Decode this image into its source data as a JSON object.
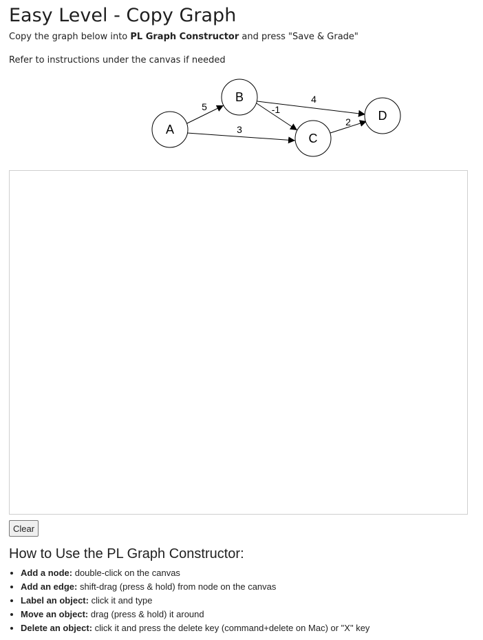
{
  "title": "Easy Level - Copy Graph",
  "intro": {
    "prefix": "Copy the graph below into ",
    "tool_name": "PL Graph Constructor",
    "suffix": " and press \"Save & Grade\""
  },
  "refer_text": "Refer to instructions under the canvas if needed",
  "graph": {
    "nodes": [
      "A",
      "B",
      "C",
      "D"
    ],
    "edges": [
      {
        "from": "A",
        "to": "B",
        "weight": "5"
      },
      {
        "from": "A",
        "to": "C",
        "weight": "3"
      },
      {
        "from": "B",
        "to": "C",
        "weight": "-1"
      },
      {
        "from": "B",
        "to": "D",
        "weight": "4"
      },
      {
        "from": "C",
        "to": "D",
        "weight": "2"
      }
    ]
  },
  "clear_button": "Clear",
  "instructions": {
    "heading": "How to Use the PL Graph Constructor:",
    "items": [
      {
        "label": "Add a node:",
        "text": " double-click on the canvas"
      },
      {
        "label": "Add an edge:",
        "text": " shift-drag (press & hold) from node on the canvas"
      },
      {
        "label": "Label an object:",
        "text": " click it and type"
      },
      {
        "label": "Move an object:",
        "text": " drag (press & hold) it around"
      },
      {
        "label": "Delete an object:",
        "text": " click it and press the delete key (command+delete on Mac) or \"X\" key"
      }
    ]
  }
}
